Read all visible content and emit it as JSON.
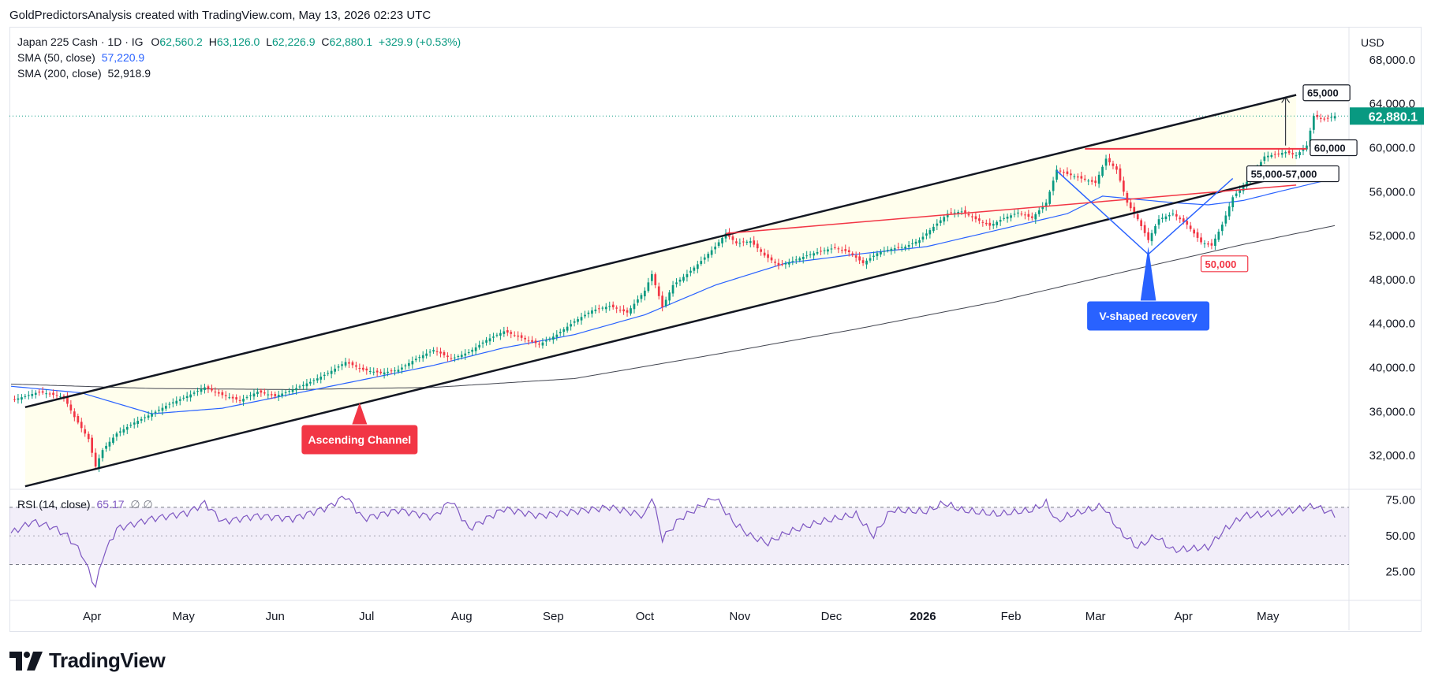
{
  "header": {
    "credit": "GoldPredictorsAnalysis created with TradingView.com, May 13, 2026 02:23 UTC"
  },
  "legend": {
    "symbol": "Japan 225 Cash · 1D · IG",
    "open_label": "O",
    "open": "62,560.2",
    "high_label": "H",
    "high": "63,126.0",
    "low_label": "L",
    "low": "62,226.9",
    "close_label": "C",
    "close": "62,880.1",
    "change": "+329.9 (+0.53%)",
    "sma50_label": "SMA (50, close)",
    "sma50_value": "57,220.9",
    "sma200_label": "SMA (200, close)",
    "sma200_value": "52,918.9",
    "rsi_label": "RSI (14, close)",
    "rsi_value": "65.17",
    "rsi_extra": "∅ ∅"
  },
  "price_scale": {
    "currency": "USD",
    "last_price": "62,880.1"
  },
  "brand": {
    "name": "TradingView"
  },
  "colors": {
    "up": "#089981",
    "down": "#f23645",
    "sma50": "#2962ff",
    "sma200": "#434651",
    "rsi": "#7e57c2",
    "channel": "#131722",
    "resistance": "#f23645",
    "annotation_red": "#f23645",
    "annotation_blue": "#2962ff"
  },
  "chart_data": {
    "type": "candlestick",
    "symbol": "Japan 225 Cash",
    "timeframe": "1D",
    "x_labels": [
      "Apr",
      "May",
      "Jun",
      "Jul",
      "Aug",
      "Sep",
      "Oct",
      "Nov",
      "Dec",
      "2026",
      "Feb",
      "Mar",
      "Apr",
      "May"
    ],
    "price_axis": {
      "ticks": [
        32000,
        36000,
        40000,
        44000,
        48000,
        52000,
        56000,
        60000,
        64000,
        68000
      ],
      "tick_labels": [
        "32,000.0",
        "36,000.0",
        "40,000.0",
        "44,000.0",
        "48,000.0",
        "52,000.0",
        "56,000.0",
        "60,000.0",
        "64,000.0",
        "68,000.0"
      ],
      "range": [
        29000,
        71000
      ]
    },
    "rsi_axis": {
      "ticks": [
        25,
        50,
        75
      ],
      "tick_labels": [
        "25.00",
        "50.00",
        "75.00"
      ],
      "bands": [
        30,
        70
      ],
      "range": [
        5,
        82
      ]
    },
    "close_path": [
      [
        0,
        37000
      ],
      [
        8,
        37800
      ],
      [
        15,
        37300
      ],
      [
        18,
        35500
      ],
      [
        22,
        33500
      ],
      [
        24,
        31000
      ],
      [
        26,
        32500
      ],
      [
        30,
        34000
      ],
      [
        35,
        35000
      ],
      [
        40,
        35800
      ],
      [
        45,
        36700
      ],
      [
        50,
        37400
      ],
      [
        55,
        38200
      ],
      [
        60,
        37500
      ],
      [
        65,
        37000
      ],
      [
        70,
        37800
      ],
      [
        75,
        37400
      ],
      [
        80,
        38000
      ],
      [
        85,
        38700
      ],
      [
        90,
        39500
      ],
      [
        95,
        40500
      ],
      [
        100,
        39800
      ],
      [
        105,
        39500
      ],
      [
        110,
        39800
      ],
      [
        115,
        40800
      ],
      [
        120,
        41600
      ],
      [
        125,
        40800
      ],
      [
        130,
        41400
      ],
      [
        135,
        42500
      ],
      [
        140,
        43300
      ],
      [
        145,
        42700
      ],
      [
        150,
        42100
      ],
      [
        155,
        43000
      ],
      [
        160,
        44200
      ],
      [
        165,
        45200
      ],
      [
        170,
        45600
      ],
      [
        175,
        45000
      ],
      [
        180,
        47000
      ],
      [
        182,
        48500
      ],
      [
        185,
        45500
      ],
      [
        188,
        47500
      ],
      [
        192,
        48500
      ],
      [
        196,
        49700
      ],
      [
        200,
        51000
      ],
      [
        203,
        52200
      ],
      [
        206,
        51300
      ],
      [
        210,
        51500
      ],
      [
        214,
        50200
      ],
      [
        218,
        49300
      ],
      [
        222,
        49700
      ],
      [
        226,
        50200
      ],
      [
        230,
        50600
      ],
      [
        234,
        50900
      ],
      [
        238,
        50500
      ],
      [
        242,
        49500
      ],
      [
        246,
        50400
      ],
      [
        250,
        50800
      ],
      [
        254,
        51000
      ],
      [
        258,
        51600
      ],
      [
        262,
        52800
      ],
      [
        266,
        54000
      ],
      [
        270,
        54200
      ],
      [
        274,
        53500
      ],
      [
        278,
        52900
      ],
      [
        282,
        53600
      ],
      [
        286,
        54100
      ],
      [
        290,
        53600
      ],
      [
        294,
        55000
      ],
      [
        297,
        58000
      ],
      [
        300,
        57600
      ],
      [
        304,
        57200
      ],
      [
        308,
        56800
      ],
      [
        311,
        59000
      ],
      [
        314,
        58000
      ],
      [
        317,
        55000
      ],
      [
        320,
        53500
      ],
      [
        323,
        51600
      ],
      [
        326,
        53500
      ],
      [
        330,
        54000
      ],
      [
        334,
        53000
      ],
      [
        338,
        51400
      ],
      [
        341,
        51100
      ],
      [
        344,
        53000
      ],
      [
        347,
        55500
      ],
      [
        350,
        56500
      ],
      [
        353,
        57700
      ],
      [
        356,
        59200
      ],
      [
        359,
        59400
      ],
      [
        362,
        59600
      ],
      [
        365,
        59300
      ],
      [
        368,
        60200
      ],
      [
        370,
        62900
      ],
      [
        373,
        62600
      ],
      [
        376,
        62880
      ]
    ],
    "sma50_path": [
      [
        0,
        38300
      ],
      [
        20,
        37700
      ],
      [
        40,
        35800
      ],
      [
        60,
        36300
      ],
      [
        80,
        37600
      ],
      [
        100,
        38900
      ],
      [
        120,
        40200
      ],
      [
        140,
        41800
      ],
      [
        160,
        43000
      ],
      [
        180,
        44800
      ],
      [
        200,
        47500
      ],
      [
        220,
        49500
      ],
      [
        240,
        50300
      ],
      [
        260,
        51000
      ],
      [
        280,
        52500
      ],
      [
        300,
        54000
      ],
      [
        310,
        55600
      ],
      [
        320,
        55300
      ],
      [
        330,
        55000
      ],
      [
        340,
        54800
      ],
      [
        350,
        55200
      ],
      [
        360,
        56000
      ],
      [
        376,
        57221
      ]
    ],
    "sma200_path": [
      [
        0,
        38500
      ],
      [
        40,
        38100
      ],
      [
        80,
        38000
      ],
      [
        120,
        38200
      ],
      [
        160,
        39000
      ],
      [
        200,
        41200
      ],
      [
        240,
        43500
      ],
      [
        280,
        46000
      ],
      [
        320,
        49000
      ],
      [
        350,
        51200
      ],
      [
        376,
        52919
      ]
    ],
    "rsi_path": [
      [
        0,
        52
      ],
      [
        6,
        60
      ],
      [
        12,
        56
      ],
      [
        16,
        50
      ],
      [
        20,
        38
      ],
      [
        24,
        14
      ],
      [
        26,
        35
      ],
      [
        30,
        55
      ],
      [
        40,
        62
      ],
      [
        50,
        66
      ],
      [
        55,
        73
      ],
      [
        60,
        60
      ],
      [
        70,
        64
      ],
      [
        80,
        62
      ],
      [
        90,
        70
      ],
      [
        95,
        78
      ],
      [
        100,
        62
      ],
      [
        110,
        68
      ],
      [
        120,
        63
      ],
      [
        125,
        75
      ],
      [
        130,
        55
      ],
      [
        140,
        69
      ],
      [
        150,
        64
      ],
      [
        160,
        67
      ],
      [
        170,
        70
      ],
      [
        180,
        64
      ],
      [
        182,
        78
      ],
      [
        185,
        48
      ],
      [
        190,
        62
      ],
      [
        200,
        77
      ],
      [
        205,
        60
      ],
      [
        210,
        50
      ],
      [
        215,
        45
      ],
      [
        220,
        52
      ],
      [
        230,
        60
      ],
      [
        240,
        65
      ],
      [
        245,
        50
      ],
      [
        250,
        68
      ],
      [
        260,
        67
      ],
      [
        265,
        73
      ],
      [
        270,
        68
      ],
      [
        280,
        65
      ],
      [
        290,
        68
      ],
      [
        294,
        73
      ],
      [
        297,
        60
      ],
      [
        300,
        64
      ],
      [
        310,
        71
      ],
      [
        315,
        53
      ],
      [
        320,
        42
      ],
      [
        325,
        50
      ],
      [
        330,
        40
      ],
      [
        340,
        42
      ],
      [
        345,
        55
      ],
      [
        350,
        64
      ],
      [
        360,
        66
      ],
      [
        370,
        71
      ],
      [
        376,
        65
      ]
    ],
    "drawings": {
      "ascending_channel": {
        "upper": [
          [
            4,
            36400
          ],
          [
            365,
            64800
          ]
        ],
        "lower": [
          [
            4,
            29200
          ],
          [
            365,
            57700
          ]
        ]
      },
      "resistance_upper_red": [
        [
          203,
          52200
        ],
        [
          365,
          56600
        ]
      ],
      "resistance_60000": [
        [
          305,
          59900
        ],
        [
          368,
          59900
        ]
      ],
      "v_pattern": [
        [
          297,
          57900
        ],
        [
          323,
          50300
        ],
        [
          347,
          57200
        ]
      ],
      "target_arrow": [
        [
          362,
          60200
        ],
        [
          362,
          64600
        ]
      ]
    },
    "annotations": [
      {
        "text": "65,000",
        "style": "box-dark"
      },
      {
        "text": "60,000",
        "style": "box-dark"
      },
      {
        "text": "55,000-57,000",
        "style": "box-dark"
      },
      {
        "text": "50,000",
        "style": "box-red"
      },
      {
        "text": "V-shaped recovery",
        "style": "callout-blue"
      },
      {
        "text": "Ascending Channel",
        "style": "callout-red"
      }
    ]
  }
}
